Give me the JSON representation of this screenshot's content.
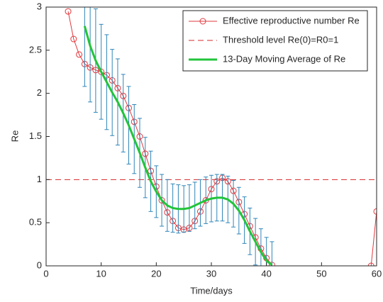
{
  "chart_data": {
    "type": "line",
    "xlabel": "Time/days",
    "ylabel": "Re",
    "xlim": [
      0,
      60
    ],
    "ylim": [
      0,
      3
    ],
    "xticks": [
      0,
      10,
      20,
      30,
      40,
      50,
      60
    ],
    "yticks": [
      0,
      0.5,
      1,
      1.5,
      2,
      2.5,
      3
    ],
    "legend": "upper right",
    "series": [
      {
        "name": "Effective reproductive number Re",
        "color": "#e0393e",
        "marker": "o",
        "x": [
          4,
          5,
          6,
          7,
          8,
          9,
          10,
          11,
          12,
          13,
          14,
          15,
          16,
          17,
          18,
          19,
          20,
          21,
          22,
          23,
          24,
          25,
          26,
          27,
          28,
          29,
          30,
          31,
          32,
          33,
          34,
          35,
          36,
          37,
          38,
          39,
          40,
          41,
          42,
          59,
          60
        ],
        "values": [
          2.95,
          2.63,
          2.45,
          2.34,
          2.3,
          2.27,
          2.25,
          2.21,
          2.15,
          2.06,
          1.97,
          1.83,
          1.67,
          1.5,
          1.3,
          1.1,
          0.92,
          0.76,
          0.62,
          0.52,
          0.44,
          0.42,
          0.44,
          0.52,
          0.63,
          0.76,
          0.89,
          0.98,
          1.02,
          0.98,
          0.87,
          0.74,
          0.6,
          0.46,
          0.33,
          0.2,
          0.09,
          0.01,
          null,
          0,
          0.63
        ]
      },
      {
        "name": "13-Day Moving Average of Re",
        "color": "#22c43a",
        "width": 3,
        "error_color": "#2f86b9",
        "x": [
          7,
          8,
          9,
          10,
          11,
          12,
          13,
          14,
          15,
          16,
          17,
          18,
          19,
          20,
          21,
          22,
          23,
          24,
          25,
          26,
          27,
          28,
          29,
          30,
          31,
          32,
          33,
          34,
          35,
          36,
          37,
          38,
          39,
          40,
          41
        ],
        "values": [
          2.78,
          2.55,
          2.38,
          2.25,
          2.13,
          2.01,
          1.9,
          1.77,
          1.63,
          1.47,
          1.31,
          1.14,
          0.98,
          0.86,
          0.76,
          0.7,
          0.67,
          0.66,
          0.66,
          0.67,
          0.7,
          0.73,
          0.76,
          0.78,
          0.79,
          0.79,
          0.77,
          0.72,
          0.64,
          0.53,
          0.4,
          0.28,
          0.16,
          0.06,
          0.01
        ],
        "errors": [
          0.7,
          0.65,
          0.6,
          0.55,
          0.55,
          0.5,
          0.5,
          0.45,
          0.45,
          0.4,
          0.4,
          0.35,
          0.35,
          0.3,
          0.3,
          0.3,
          0.28,
          0.28,
          0.27,
          0.27,
          0.27,
          0.27,
          0.27,
          0.27,
          0.27,
          0.27,
          0.27,
          0.27,
          0.27,
          0.27,
          0.27,
          0.27,
          0.27,
          0.27,
          0.27
        ]
      }
    ],
    "reference_line": {
      "name": "Threshold level Re(0)=R0=1",
      "value": 1,
      "color": "#d62728"
    }
  }
}
